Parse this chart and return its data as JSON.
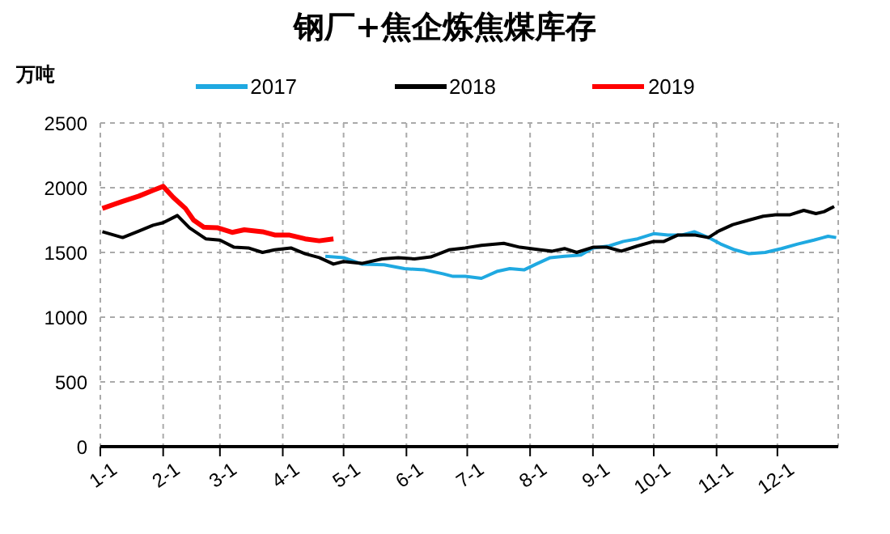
{
  "chart_data": {
    "type": "line",
    "title": "钢厂+焦企炼焦煤库存",
    "ylabel": "万吨",
    "xlim": [
      "--01-01",
      "--12-31"
    ],
    "xticks": [
      {
        "value": "--01-01",
        "label": "1-1"
      },
      {
        "value": "--02-01",
        "label": "2-1"
      },
      {
        "value": "--03-01",
        "label": "3-1"
      },
      {
        "value": "--04-01",
        "label": "4-1"
      },
      {
        "value": "--05-01",
        "label": "5-1"
      },
      {
        "value": "--06-01",
        "label": "6-1"
      },
      {
        "value": "--07-01",
        "label": "7-1"
      },
      {
        "value": "--08-01",
        "label": "8-1"
      },
      {
        "value": "--09-01",
        "label": "9-1"
      },
      {
        "value": "--10-01",
        "label": "10-1"
      },
      {
        "value": "--11-01",
        "label": "11-1"
      },
      {
        "value": "--12-01",
        "label": "12-1"
      }
    ],
    "ylim": [
      0,
      2500
    ],
    "yticks": [
      0,
      500,
      1000,
      1500,
      2000,
      2500
    ],
    "grid": true,
    "legend": "top",
    "marker": "none",
    "line_style": "solid",
    "series": [
      {
        "name": "2017",
        "color": "#1fa9e1",
        "x": [
          "--04-22",
          "--05-01",
          "--05-10",
          "--05-21",
          "--05-31",
          "--06-10",
          "--06-19",
          "--06-24",
          "--06-30",
          "--07-08",
          "--07-16",
          "--07-22",
          "--07-29",
          "--08-04",
          "--08-11",
          "--08-18",
          "--08-26",
          "--09-01",
          "--09-09",
          "--09-16",
          "--09-23",
          "--10-01",
          "--10-08",
          "--10-15",
          "--10-21",
          "--10-28",
          "--11-03",
          "--11-10",
          "--11-17",
          "--11-25",
          "--12-03",
          "--12-11",
          "--12-19",
          "--12-26",
          "--12-30"
        ],
        "values": [
          1470,
          1460,
          1410,
          1405,
          1375,
          1365,
          1335,
          1315,
          1315,
          1300,
          1355,
          1375,
          1365,
          1410,
          1460,
          1470,
          1480,
          1535,
          1550,
          1585,
          1605,
          1645,
          1635,
          1635,
          1660,
          1615,
          1565,
          1520,
          1490,
          1500,
          1530,
          1565,
          1595,
          1625,
          1615
        ]
      },
      {
        "name": "2018",
        "color": "#000000",
        "x": [
          "--01-02",
          "--01-12",
          "--01-20",
          "--01-27",
          "--02-01",
          "--02-08",
          "--02-14",
          "--02-22",
          "--03-01",
          "--03-08",
          "--03-15",
          "--03-22",
          "--03-28",
          "--04-05",
          "--04-12",
          "--04-19",
          "--04-26",
          "--05-01",
          "--05-10",
          "--05-20",
          "--05-28",
          "--06-05",
          "--06-13",
          "--06-22",
          "--06-30",
          "--07-08",
          "--07-19",
          "--07-27",
          "--08-06",
          "--08-12",
          "--08-18",
          "--08-24",
          "--09-01",
          "--09-08",
          "--09-15",
          "--09-23",
          "--10-01",
          "--10-06",
          "--10-13",
          "--10-21",
          "--10-28",
          "--11-02",
          "--11-09",
          "--11-17",
          "--11-24",
          "--11-30",
          "--12-07",
          "--12-14",
          "--12-20",
          "--12-24",
          "--12-29"
        ],
        "values": [
          1660,
          1615,
          1665,
          1710,
          1730,
          1785,
          1690,
          1605,
          1595,
          1540,
          1535,
          1500,
          1520,
          1535,
          1490,
          1460,
          1410,
          1430,
          1415,
          1450,
          1460,
          1450,
          1465,
          1520,
          1535,
          1555,
          1570,
          1540,
          1520,
          1510,
          1530,
          1500,
          1540,
          1540,
          1510,
          1550,
          1585,
          1585,
          1635,
          1635,
          1615,
          1665,
          1715,
          1750,
          1780,
          1790,
          1790,
          1825,
          1800,
          1815,
          1855
        ]
      },
      {
        "name": "2019",
        "color": "#ff0000",
        "x": [
          "--01-02",
          "--01-12",
          "--01-20",
          "--01-27",
          "--02-01",
          "--02-06",
          "--02-12",
          "--02-16",
          "--02-21",
          "--02-28",
          "--03-07",
          "--03-13",
          "--03-22",
          "--03-28",
          "--04-04",
          "--04-12",
          "--04-19",
          "--04-26"
        ],
        "values": [
          1840,
          1895,
          1935,
          1980,
          2010,
          1925,
          1840,
          1750,
          1695,
          1690,
          1655,
          1675,
          1660,
          1635,
          1635,
          1605,
          1590,
          1605
        ]
      }
    ]
  }
}
